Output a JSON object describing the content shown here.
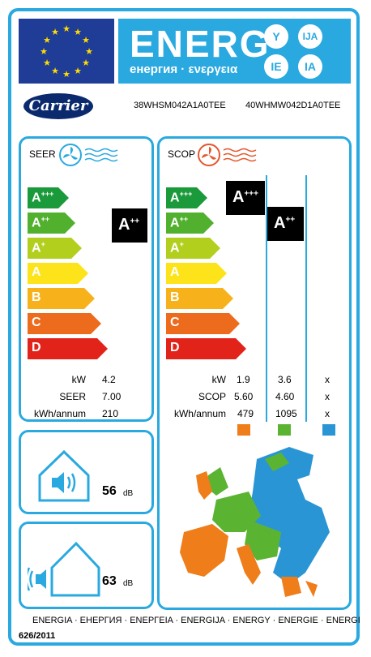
{
  "header": {
    "energy_word": "ENERG",
    "energy_sub": "енергия · ενεργεια",
    "lang_codes": [
      "Y",
      "IJA",
      "IE",
      "IA"
    ]
  },
  "brand": {
    "logo_text": "Carrier",
    "indoor_model": "38WHSM042A1A0TEE",
    "outdoor_model": "40WHMW042D1A0TEE"
  },
  "cooling": {
    "title": "SEER",
    "scale": [
      "A+++",
      "A++",
      "A+",
      "A",
      "B",
      "C",
      "D"
    ],
    "rating": "A++",
    "specs": [
      {
        "label": "kW",
        "value": "4.2"
      },
      {
        "label": "SEER",
        "value": "7.00"
      },
      {
        "label": "kWh/annum",
        "value": "210"
      }
    ]
  },
  "heating": {
    "title": "SCOP",
    "scale": [
      "A+++",
      "A++",
      "A+",
      "A",
      "B",
      "C",
      "D"
    ],
    "rating_warmer": "A+++",
    "rating_average": "A++",
    "specs": [
      {
        "label": "kW",
        "values": [
          "1.9",
          "3.6",
          "x"
        ]
      },
      {
        "label": "SCOP",
        "values": [
          "5.60",
          "4.60",
          "x"
        ]
      },
      {
        "label": "kWh/annum",
        "values": [
          "479",
          "1095",
          "x"
        ]
      }
    ],
    "zone_colors": [
      "#ee7d1a",
      "#5bb431",
      "#2a95d5"
    ]
  },
  "noise": {
    "indoor_value": "56",
    "indoor_unit": "dB",
    "outdoor_value": "63",
    "outdoor_unit": "dB"
  },
  "footer": {
    "languages": "ENERGIA · ЕНЕРГИЯ · ΕΝΕΡΓΕΙΑ · ENERGIJA · ENERGY · ENERGIE · ENERGI",
    "regulation": "626/2011"
  },
  "colors": {
    "frame": "#29a9e0",
    "scale": [
      "#1a9a3a",
      "#51b02e",
      "#b2cf1e",
      "#fde31a",
      "#f7b21b",
      "#ec6b1d",
      "#e2231a"
    ]
  }
}
